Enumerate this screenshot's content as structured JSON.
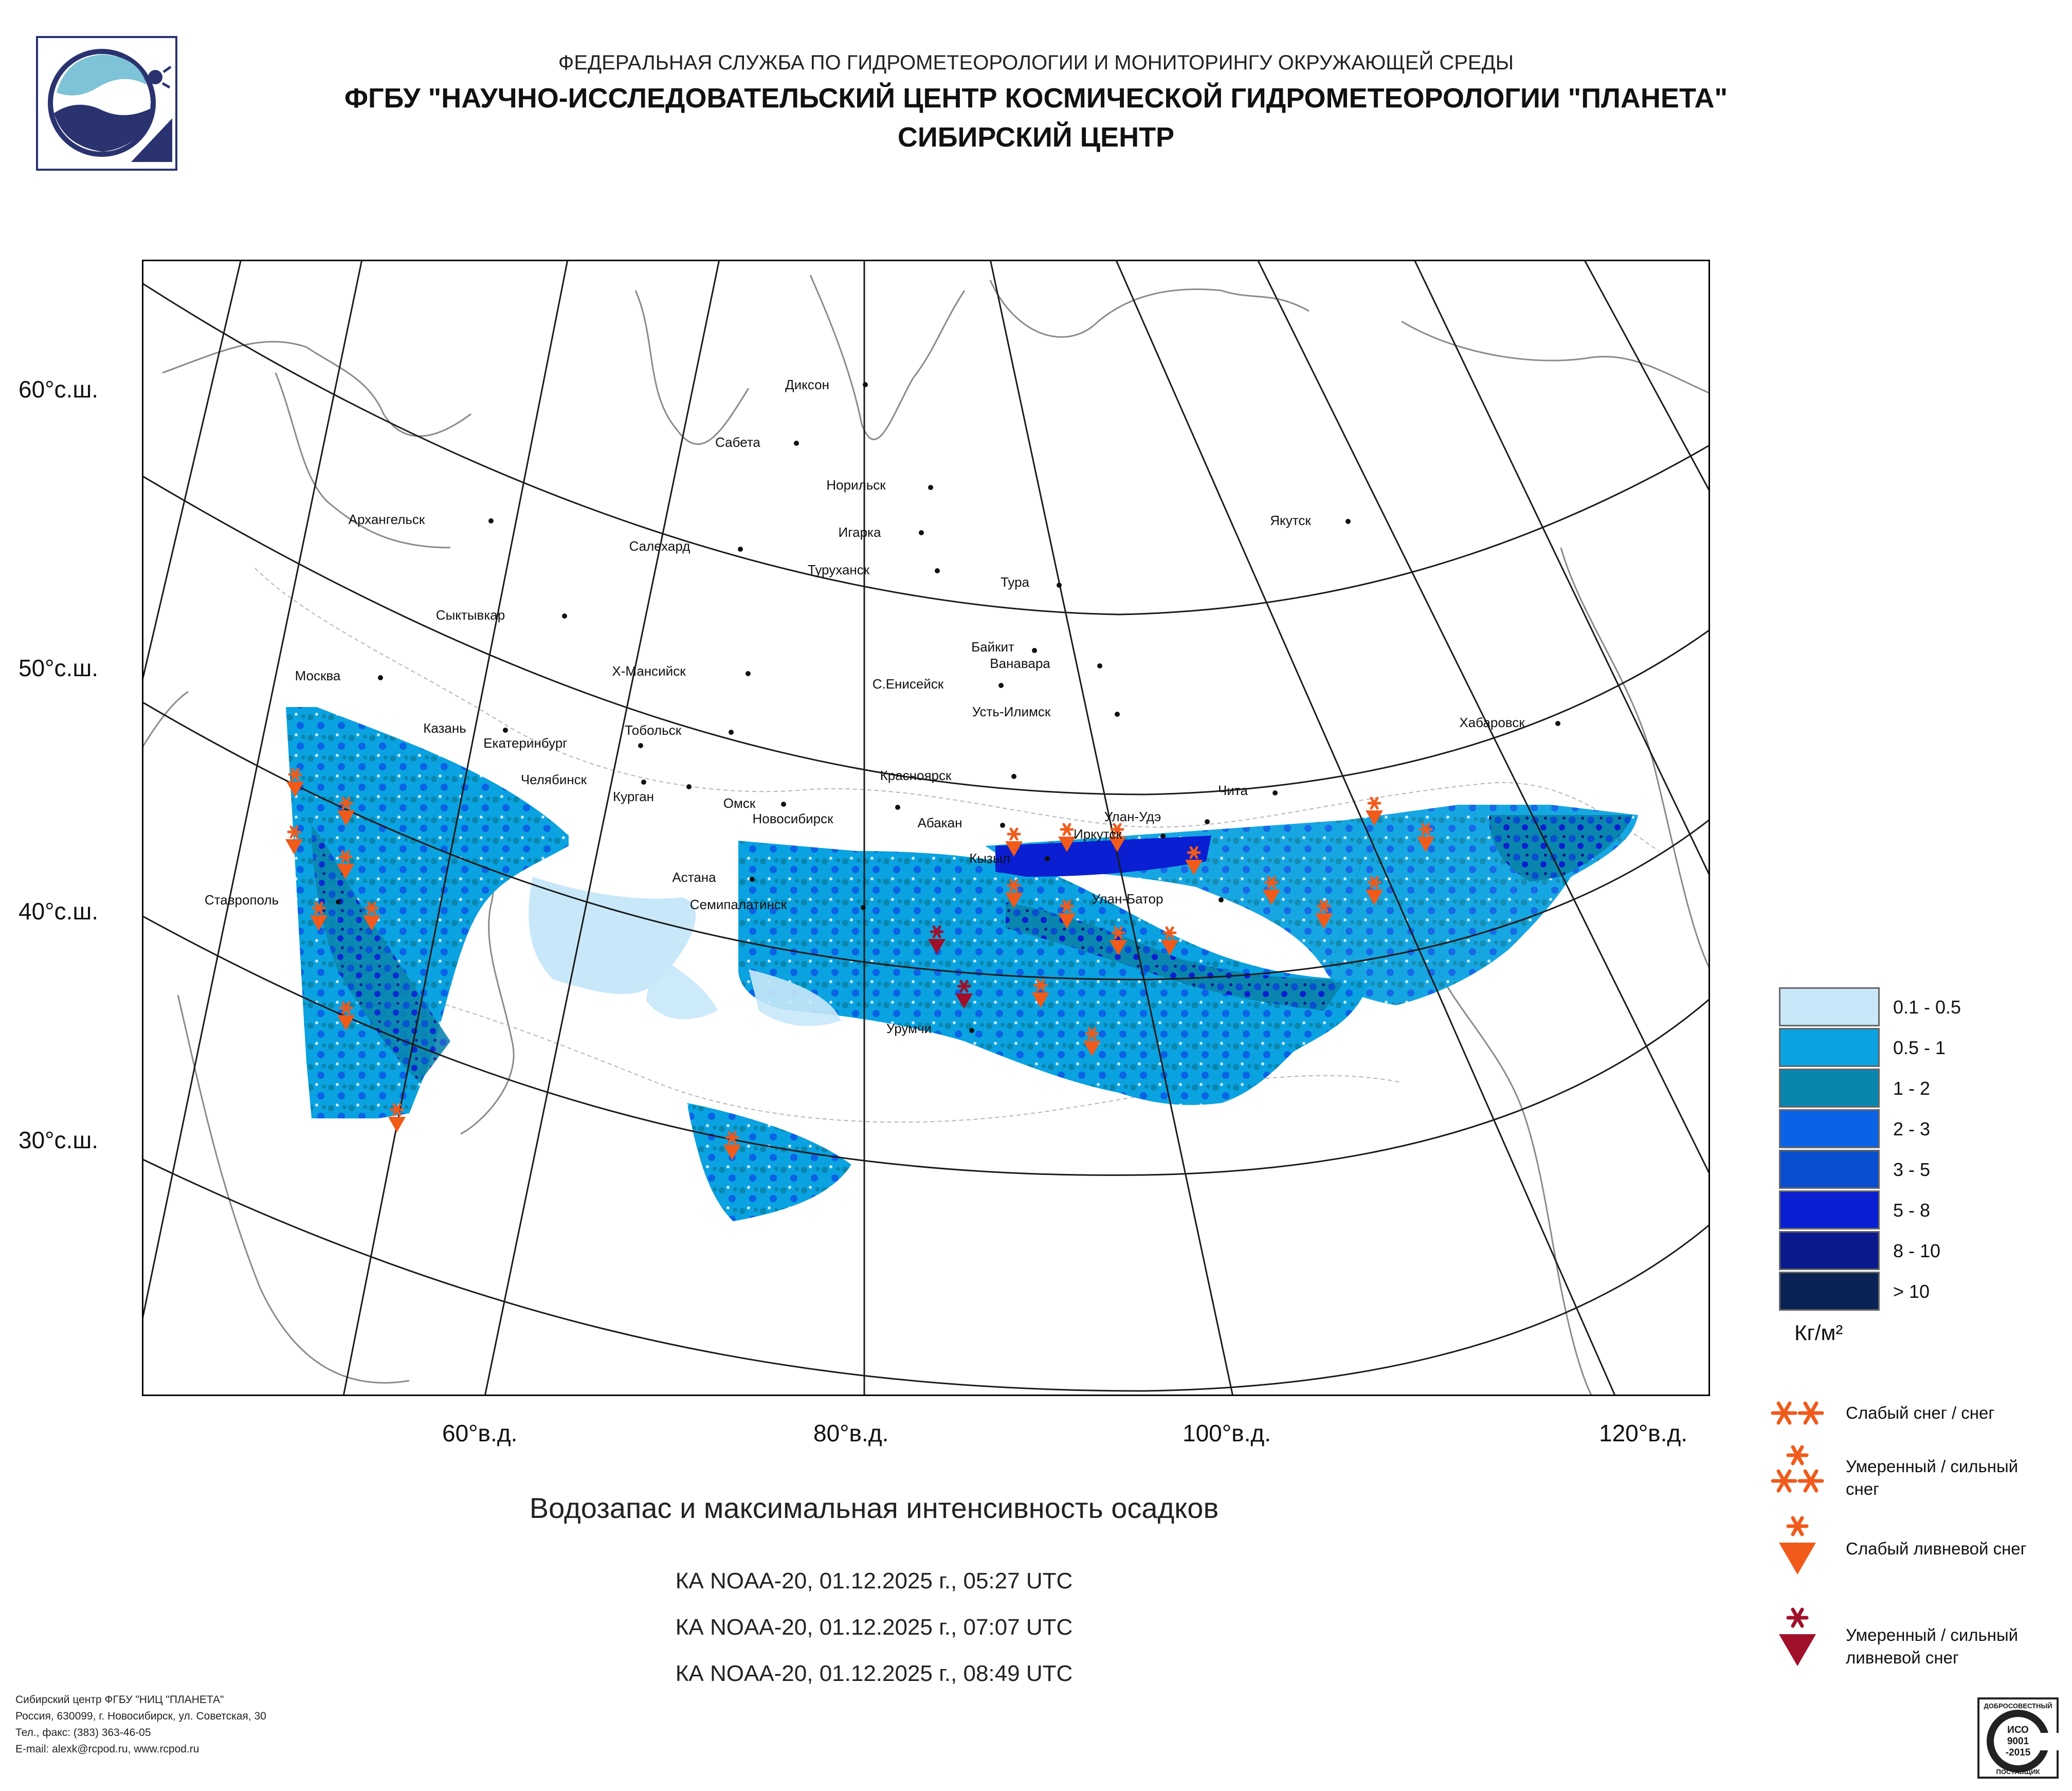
{
  "header": {
    "line1": "ФЕДЕРАЛЬНАЯ СЛУЖБА ПО ГИДРОМЕТЕОРОЛОГИИ И МОНИТОРИНГУ ОКРУЖАЮЩЕЙ СРЕДЫ",
    "line2": "ФГБУ \"НАУЧНО-ИССЛЕДОВАТЕЛЬСКИЙ ЦЕНТР КОСМИЧЕСКОЙ ГИДРОМЕТЕОРОЛОГИИ \"ПЛАНЕТА\"",
    "line3": "СИБИРСКИЙ ЦЕНТР"
  },
  "map": {
    "lat_labels": [
      "60°с.ш.",
      "50°с.ш.",
      "40°с.ш.",
      "30°с.ш."
    ],
    "lon_labels": [
      "60°в.д.",
      "80°в.д.",
      "100°в.д.",
      "120°в.д."
    ],
    "cities": [
      "Диксон",
      "Сабета",
      "Норильск",
      "Архангельск",
      "Игарка",
      "Салехард",
      "Туруханск",
      "Якутск",
      "Тура",
      "Сыктывкар",
      "Байкит",
      "Ванавара",
      "Москва",
      "Х-Мансийск",
      "С.Енисейск",
      "Усть-Илимск",
      "Казань",
      "Тобольск",
      "Хабаровск",
      "Екатеринбург",
      "Челябинск",
      "Курган",
      "Красноярск",
      "Чита",
      "Омск",
      "Новосибирск",
      "Абакан",
      "Улан-Удэ",
      "Иркутск",
      "Кызыл",
      "Астана",
      "Ставрополь",
      "Улан-Батор",
      "Семипалатинск",
      "Урумчи"
    ],
    "colors": {
      "land": "#ffffff",
      "coast": "#7a7a7a",
      "grid": "#1a1a1a",
      "frame": "#000000",
      "snow_marker": "#f05a1a",
      "shower_heavy_marker": "#a0102a"
    }
  },
  "legend": {
    "classes": [
      {
        "label": "0.1 - 0.5",
        "color": "#c8e8fa"
      },
      {
        "label": "0.5 - 1",
        "color": "#0aa2e0"
      },
      {
        "label": "1 - 2",
        "color": "#0a86ae"
      },
      {
        "label": "2 - 3",
        "color": "#0a62e6"
      },
      {
        "label": "3 - 5",
        "color": "#0a4ed0"
      },
      {
        "label": "5 - 8",
        "color": "#0a1ed2"
      },
      {
        "label": "8 - 10",
        "color": "#0a1a8c"
      },
      {
        "label": "> 10",
        "color": "#0a2254"
      }
    ],
    "unit": "Кг/м²"
  },
  "symbols": [
    {
      "label": "Слабый снег / снег",
      "icon": "two-asterisks-icon"
    },
    {
      "label": "Умеренный / сильный снег",
      "icon": "three-asterisks-icon"
    },
    {
      "label": "Слабый ливневой снег",
      "icon": "asterisk-over-triangle-icon"
    },
    {
      "label": "Умеренный / сильный ливневой снег",
      "icon": "asterisk-over-triangle-dark-icon"
    }
  ],
  "title": "Водозапас и максимальная интенсивность осадков",
  "passes": [
    "КА NOAA-20, 01.12.2025 г., 05:27 UTC",
    "КА NOAA-20, 01.12.2025 г., 07:07 UTC",
    "КА NOAA-20, 01.12.2025 г., 08:49 UTC"
  ],
  "contact": [
    "Сибирский центр ФГБУ \"НИЦ \"ПЛАНЕТА\"",
    "Россия, 630099, г. Новосибирск, ул. Советская, 30",
    "Тел., факс: (383) 363-46-05",
    "E-mail: alexk@rcpod.ru, www.rcpod.ru"
  ],
  "iso_badge": {
    "top": "ДОБРОСОВЕСТНЫЙ",
    "line1": "ИСО",
    "line2": "9001",
    "line3": "-2015",
    "bottom": "ПОСТАВЩИК"
  }
}
